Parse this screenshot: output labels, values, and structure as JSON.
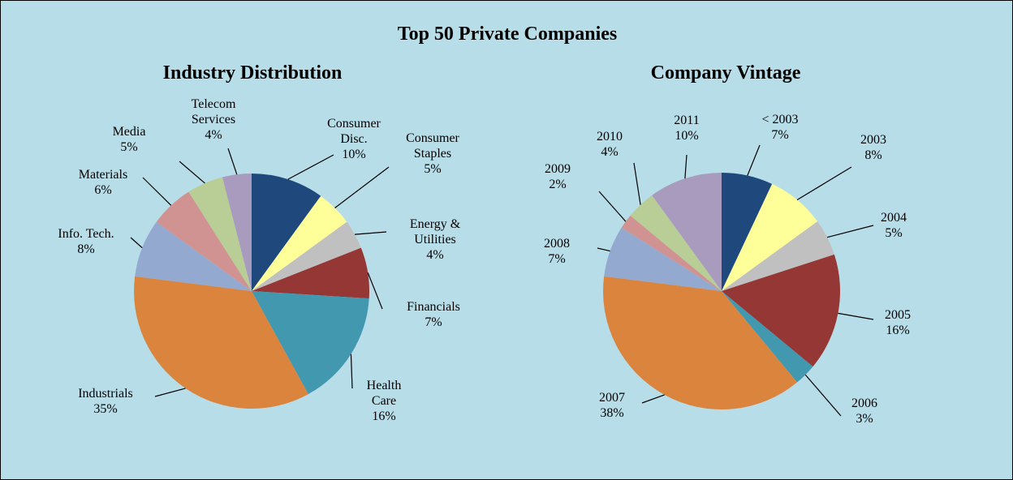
{
  "title": "Top 50 Private Companies",
  "chart_data": [
    {
      "type": "pie",
      "title": "Industry Distribution",
      "categories": [
        "Consumer Disc.",
        "Consumer Staples",
        "Energy & Utilities",
        "Financials",
        "Health Care",
        "Industrials",
        "Info. Tech.",
        "Materials",
        "Media",
        "Telecom Services"
      ],
      "values": [
        10,
        5,
        4,
        7,
        16,
        35,
        8,
        6,
        5,
        4
      ],
      "value_labels": [
        "10%",
        "5%",
        "4%",
        "7%",
        "16%",
        "35%",
        "8%",
        "6%",
        "5%",
        "4%"
      ],
      "colors": [
        "#1F497D",
        "#FFFF99",
        "#C0C0C0",
        "#953735",
        "#4198AF",
        "#DB843D",
        "#93A9CF",
        "#D19392",
        "#B9CD96",
        "#A99BBD"
      ]
    },
    {
      "type": "pie",
      "title": "Company Vintage",
      "categories": [
        "< 2003",
        "2003",
        "2004",
        "2005",
        "2006",
        "2007",
        "2008",
        "2009",
        "2010",
        "2011"
      ],
      "values": [
        7,
        8,
        5,
        16,
        3,
        38,
        7,
        2,
        4,
        10
      ],
      "value_labels": [
        "7%",
        "8%",
        "5%",
        "16%",
        "3%",
        "38%",
        "7%",
        "2%",
        "4%",
        "10%"
      ],
      "colors": [
        "#1F497D",
        "#FFFF99",
        "#C0C0C0",
        "#953735",
        "#4198AF",
        "#DB843D",
        "#93A9CF",
        "#D19392",
        "#B9CD96",
        "#A99BBD"
      ]
    }
  ]
}
